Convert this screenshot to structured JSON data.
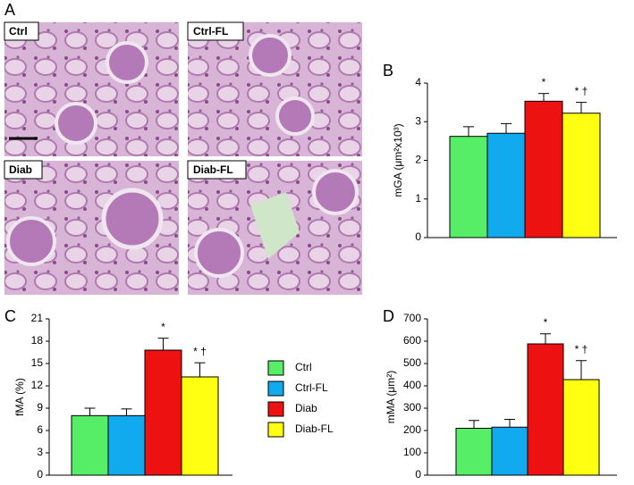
{
  "panel_labels": [
    "A",
    "B",
    "C",
    "D"
  ],
  "micrographs": [
    "Ctrl",
    "Ctrl-FL",
    "Diab",
    "Diab-FL"
  ],
  "legend": {
    "names": [
      "Ctrl",
      "Ctrl-FL",
      "Diab",
      "Diab-FL"
    ],
    "colors": [
      "#55ee66",
      "#11aaee",
      "#ee1111",
      "#ffff11"
    ]
  },
  "chart_data": [
    {
      "type": "bar",
      "ylabel": "mGA (μm²x10³)",
      "values": [
        2.62,
        2.7,
        3.53,
        3.22
      ],
      "errors": [
        0.25,
        0.25,
        0.2,
        0.28
      ],
      "annotations": [
        null,
        null,
        "*",
        "* †"
      ],
      "ylim": [
        0,
        4
      ],
      "yticks": [
        0,
        1,
        2,
        3,
        4
      ]
    },
    {
      "type": "bar",
      "ylabel": "fMA (%)",
      "values": [
        8.0,
        8.0,
        16.8,
        13.2
      ],
      "errors": [
        1.0,
        0.9,
        1.6,
        1.9
      ],
      "annotations": [
        null,
        null,
        "*",
        "* †"
      ],
      "ylim": [
        0,
        21
      ],
      "yticks": [
        0,
        3,
        6,
        9,
        12,
        15,
        18,
        21
      ]
    },
    {
      "type": "bar",
      "ylabel": "mMA (μm²)",
      "values": [
        210,
        215,
        588,
        428
      ],
      "errors": [
        35,
        35,
        45,
        85
      ],
      "annotations": [
        null,
        null,
        "*",
        "* †"
      ],
      "ylim": [
        0,
        700
      ],
      "yticks": [
        0,
        100,
        200,
        300,
        400,
        500,
        600,
        700
      ]
    }
  ]
}
